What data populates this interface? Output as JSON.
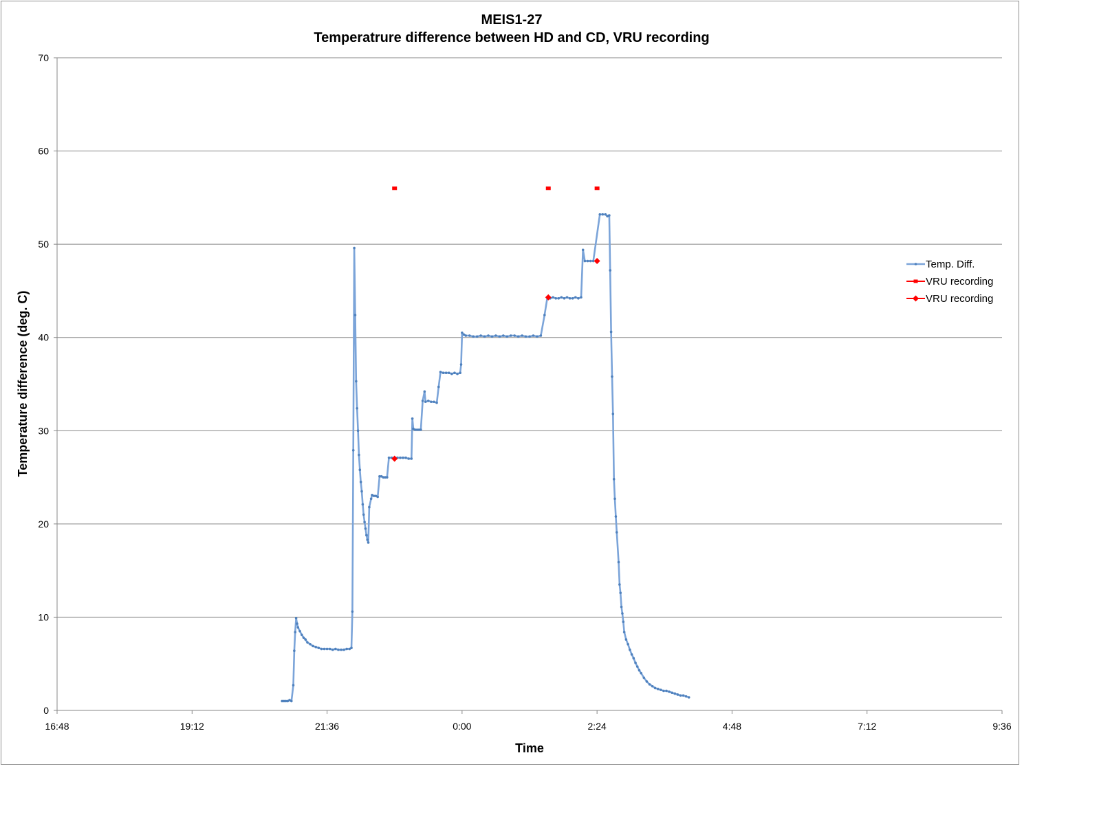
{
  "chart_data": {
    "type": "line",
    "title": "MEIS1-27",
    "subtitle": "Temperatrure difference between HD and CD, VRU recording",
    "xlabel": "Time",
    "ylabel": "Temperature difference (deg. C)",
    "x_ticks": [
      "16:48",
      "19:12",
      "21:36",
      "0:00",
      "2:24",
      "4:48",
      "7:12",
      "9:36"
    ],
    "x_range": [
      "16:48",
      "9:36"
    ],
    "y_ticks": [
      "0",
      "10",
      "20",
      "30",
      "40",
      "50",
      "60",
      "70"
    ],
    "ylim": [
      0,
      70
    ],
    "grid": "horizontal",
    "legend_position": "right",
    "series": [
      {
        "name": "Temp. Diff.",
        "color": "#7ba4d9",
        "marker": "small-dot",
        "points": [
          [
            "20:48",
            1.0
          ],
          [
            "20:50",
            1.0
          ],
          [
            "20:52",
            1.0
          ],
          [
            "20:54",
            1.0
          ],
          [
            "20:56",
            1.1
          ],
          [
            "20:58",
            1.0
          ],
          [
            "21:00",
            2.7
          ],
          [
            "21:01",
            6.4
          ],
          [
            "21:02",
            8.4
          ],
          [
            "21:03",
            9.9
          ],
          [
            "21:04",
            9.3
          ],
          [
            "21:05",
            8.9
          ],
          [
            "21:07",
            8.5
          ],
          [
            "21:09",
            8.1
          ],
          [
            "21:11",
            7.8
          ],
          [
            "21:13",
            7.6
          ],
          [
            "21:15",
            7.3
          ],
          [
            "21:18",
            7.1
          ],
          [
            "21:21",
            6.9
          ],
          [
            "21:24",
            6.8
          ],
          [
            "21:27",
            6.7
          ],
          [
            "21:30",
            6.6
          ],
          [
            "21:33",
            6.6
          ],
          [
            "21:36",
            6.6
          ],
          [
            "21:39",
            6.6
          ],
          [
            "21:42",
            6.5
          ],
          [
            "21:45",
            6.6
          ],
          [
            "21:48",
            6.5
          ],
          [
            "21:51",
            6.5
          ],
          [
            "21:54",
            6.5
          ],
          [
            "21:57",
            6.6
          ],
          [
            "22:00",
            6.6
          ],
          [
            "22:02",
            6.7
          ],
          [
            "22:03",
            10.6
          ],
          [
            "22:04",
            27.9
          ],
          [
            "22:05",
            49.6
          ],
          [
            "22:06",
            42.4
          ],
          [
            "22:07",
            35.3
          ],
          [
            "22:08",
            32.4
          ],
          [
            "22:09",
            30.0
          ],
          [
            "22:10",
            27.4
          ],
          [
            "22:11",
            25.8
          ],
          [
            "22:12",
            24.5
          ],
          [
            "22:13",
            23.5
          ],
          [
            "22:14",
            22.1
          ],
          [
            "22:15",
            21.0
          ],
          [
            "22:16",
            20.2
          ],
          [
            "22:17",
            19.5
          ],
          [
            "22:18",
            18.8
          ],
          [
            "22:19",
            18.3
          ],
          [
            "22:20",
            18.0
          ],
          [
            "22:21",
            21.8
          ],
          [
            "22:23",
            22.7
          ],
          [
            "22:24",
            23.1
          ],
          [
            "22:26",
            23.0
          ],
          [
            "22:28",
            23.0
          ],
          [
            "22:30",
            22.9
          ],
          [
            "22:32",
            25.1
          ],
          [
            "22:34",
            25.1
          ],
          [
            "22:36",
            25.0
          ],
          [
            "22:38",
            25.0
          ],
          [
            "22:40",
            25.0
          ],
          [
            "22:42",
            27.1
          ],
          [
            "22:45",
            27.1
          ],
          [
            "22:48",
            27.0
          ],
          [
            "22:51",
            27.1
          ],
          [
            "22:54",
            27.1
          ],
          [
            "22:57",
            27.1
          ],
          [
            "23:00",
            27.1
          ],
          [
            "23:03",
            27.0
          ],
          [
            "23:06",
            27.0
          ],
          [
            "23:07",
            31.3
          ],
          [
            "23:08",
            30.2
          ],
          [
            "23:10",
            30.1
          ],
          [
            "23:12",
            30.1
          ],
          [
            "23:14",
            30.1
          ],
          [
            "23:16",
            30.1
          ],
          [
            "23:18",
            33.2
          ],
          [
            "23:20",
            34.2
          ],
          [
            "23:21",
            33.1
          ],
          [
            "23:24",
            33.2
          ],
          [
            "23:27",
            33.1
          ],
          [
            "23:30",
            33.1
          ],
          [
            "23:33",
            33.0
          ],
          [
            "23:35",
            34.7
          ],
          [
            "23:37",
            36.3
          ],
          [
            "23:40",
            36.2
          ],
          [
            "23:43",
            36.2
          ],
          [
            "23:46",
            36.2
          ],
          [
            "23:49",
            36.1
          ],
          [
            "23:52",
            36.2
          ],
          [
            "23:55",
            36.1
          ],
          [
            "23:58",
            36.2
          ],
          [
            "23:59",
            37.1
          ],
          [
            "24:00",
            40.5
          ],
          [
            "24:02",
            40.3
          ],
          [
            "24:04",
            40.2
          ],
          [
            "24:08",
            40.2
          ],
          [
            "24:12",
            40.1
          ],
          [
            "24:16",
            40.1
          ],
          [
            "24:20",
            40.2
          ],
          [
            "24:24",
            40.1
          ],
          [
            "24:28",
            40.2
          ],
          [
            "24:32",
            40.1
          ],
          [
            "24:36",
            40.2
          ],
          [
            "24:40",
            40.1
          ],
          [
            "24:44",
            40.2
          ],
          [
            "24:48",
            40.1
          ],
          [
            "24:52",
            40.2
          ],
          [
            "24:56",
            40.2
          ],
          [
            "25:00",
            40.1
          ],
          [
            "25:04",
            40.2
          ],
          [
            "25:08",
            40.1
          ],
          [
            "25:12",
            40.1
          ],
          [
            "25:16",
            40.2
          ],
          [
            "25:20",
            40.1
          ],
          [
            "25:24",
            40.2
          ],
          [
            "25:28",
            42.4
          ],
          [
            "25:31",
            44.3
          ],
          [
            "25:34",
            44.2
          ],
          [
            "25:37",
            44.3
          ],
          [
            "25:40",
            44.2
          ],
          [
            "25:43",
            44.2
          ],
          [
            "25:46",
            44.3
          ],
          [
            "25:49",
            44.2
          ],
          [
            "25:52",
            44.3
          ],
          [
            "25:55",
            44.2
          ],
          [
            "25:58",
            44.2
          ],
          [
            "26:01",
            44.3
          ],
          [
            "26:04",
            44.2
          ],
          [
            "26:07",
            44.3
          ],
          [
            "26:09",
            49.4
          ],
          [
            "26:11",
            48.2
          ],
          [
            "26:14",
            48.2
          ],
          [
            "26:17",
            48.2
          ],
          [
            "26:20",
            48.2
          ],
          [
            "26:27",
            53.2
          ],
          [
            "26:30",
            53.2
          ],
          [
            "26:33",
            53.2
          ],
          [
            "26:35",
            53.0
          ],
          [
            "26:37",
            53.1
          ],
          [
            "26:38",
            47.2
          ],
          [
            "26:39",
            40.6
          ],
          [
            "26:40",
            35.8
          ],
          [
            "26:41",
            31.8
          ],
          [
            "26:42",
            24.8
          ],
          [
            "26:43",
            22.7
          ],
          [
            "26:44",
            20.8
          ],
          [
            "26:45",
            19.1
          ],
          [
            "26:47",
            15.9
          ],
          [
            "26:48",
            13.5
          ],
          [
            "26:49",
            12.6
          ],
          [
            "26:50",
            11.1
          ],
          [
            "26:51",
            10.4
          ],
          [
            "26:52",
            9.5
          ],
          [
            "26:53",
            8.4
          ],
          [
            "26:55",
            7.6
          ],
          [
            "26:57",
            7.1
          ],
          [
            "26:59",
            6.5
          ],
          [
            "27:01",
            6.0
          ],
          [
            "27:03",
            5.6
          ],
          [
            "27:05",
            5.1
          ],
          [
            "27:07",
            4.7
          ],
          [
            "27:09",
            4.3
          ],
          [
            "27:11",
            4.0
          ],
          [
            "27:14",
            3.5
          ],
          [
            "27:17",
            3.1
          ],
          [
            "27:20",
            2.8
          ],
          [
            "27:23",
            2.6
          ],
          [
            "27:26",
            2.4
          ],
          [
            "27:29",
            2.3
          ],
          [
            "27:32",
            2.2
          ],
          [
            "27:35",
            2.1
          ],
          [
            "27:38",
            2.1
          ],
          [
            "27:41",
            2.0
          ],
          [
            "27:44",
            1.9
          ],
          [
            "27:47",
            1.8
          ],
          [
            "27:50",
            1.7
          ],
          [
            "27:53",
            1.6
          ],
          [
            "27:56",
            1.6
          ],
          [
            "27:59",
            1.5
          ],
          [
            "28:02",
            1.4
          ]
        ]
      },
      {
        "name": "VRU recording",
        "color": "#ff0000",
        "marker": "square",
        "points": [
          [
            "22:48",
            56.0
          ],
          [
            "25:32",
            56.0
          ],
          [
            "26:24",
            56.0
          ]
        ]
      },
      {
        "name": "VRU recording",
        "color": "#ff0000",
        "marker": "diamond",
        "points": [
          [
            "22:48",
            27.0
          ],
          [
            "25:32",
            44.3
          ],
          [
            "26:24",
            48.2
          ]
        ]
      }
    ]
  }
}
